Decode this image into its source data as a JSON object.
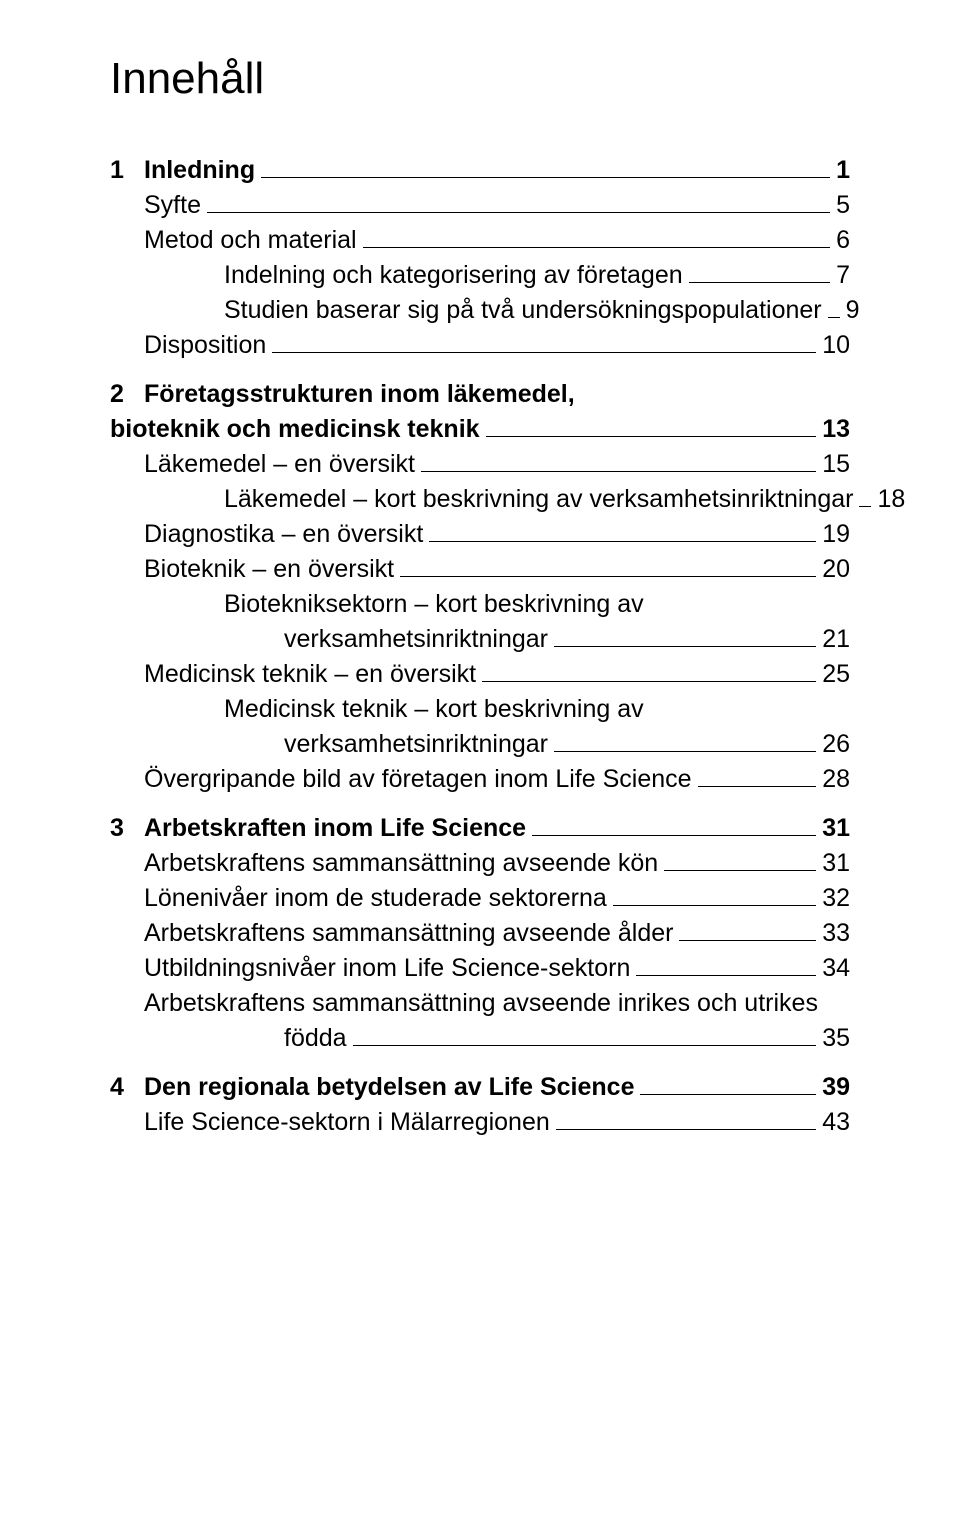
{
  "title": "Innehåll",
  "chapters": [
    {
      "num": "1",
      "label": "Inledning",
      "page": "1",
      "entries": [
        {
          "label": "Syfte",
          "page": "5",
          "indent": 1
        },
        {
          "label": "Metod och material",
          "page": "6",
          "indent": 1
        },
        {
          "label": "Indelning och kategorisering av företagen",
          "page": "7",
          "indent": 2
        },
        {
          "label": "Studien baserar sig på två undersökningspopulationer",
          "page": "9",
          "indent": 2
        },
        {
          "label": "Disposition",
          "page": "10",
          "indent": 1
        }
      ]
    },
    {
      "num": "2",
      "label_line1": "Företagsstrukturen inom läkemedel,",
      "label_line2": "bioteknik och medicinsk teknik",
      "page": "13",
      "entries": [
        {
          "label": "Läkemedel – en översikt",
          "page": "15",
          "indent": 1
        },
        {
          "label": "Läkemedel – kort beskrivning av verksamhetsinriktningar",
          "page": "18",
          "indent": 2
        },
        {
          "label": "Diagnostika – en översikt",
          "page": "19",
          "indent": 1
        },
        {
          "label": "Bioteknik – en översikt",
          "page": "20",
          "indent": 1
        },
        {
          "label_line1": "Biotekniksektorn – kort beskrivning av",
          "label_line2": "verksamhetsinriktningar",
          "page": "21",
          "indent": 2,
          "wrap": true
        },
        {
          "label": "Medicinsk teknik – en översikt",
          "page": "25",
          "indent": 1
        },
        {
          "label_line1": "Medicinsk teknik – kort beskrivning av",
          "label_line2": "verksamhetsinriktningar",
          "page": "26",
          "indent": 2,
          "wrap": true
        },
        {
          "label": "Övergripande bild av företagen inom Life Science",
          "page": "28",
          "indent": 1
        }
      ]
    },
    {
      "num": "3",
      "label": "Arbetskraften inom Life Science",
      "page": "31",
      "entries": [
        {
          "label": "Arbetskraftens sammansättning avseende kön",
          "page": "31",
          "indent": 1
        },
        {
          "label": "Lönenivåer inom de studerade sektorerna",
          "page": "32",
          "indent": 1
        },
        {
          "label": "Arbetskraftens sammansättning avseende ålder",
          "page": "33",
          "indent": 1
        },
        {
          "label": "Utbildningsnivåer inom Life Science-sektorn",
          "page": "34",
          "indent": 1
        },
        {
          "label_line1": "Arbetskraftens sammansättning avseende inrikes och utrikes",
          "label_line2": "födda",
          "page": "35",
          "indent": 1,
          "wrap": true,
          "wrapindent": 3
        }
      ]
    },
    {
      "num": "4",
      "label": "Den regionala betydelsen av Life Science",
      "page": "39",
      "entries": [
        {
          "label": "Life Science-sektorn i Mälarregionen",
          "page": "43",
          "indent": 1
        }
      ]
    }
  ]
}
